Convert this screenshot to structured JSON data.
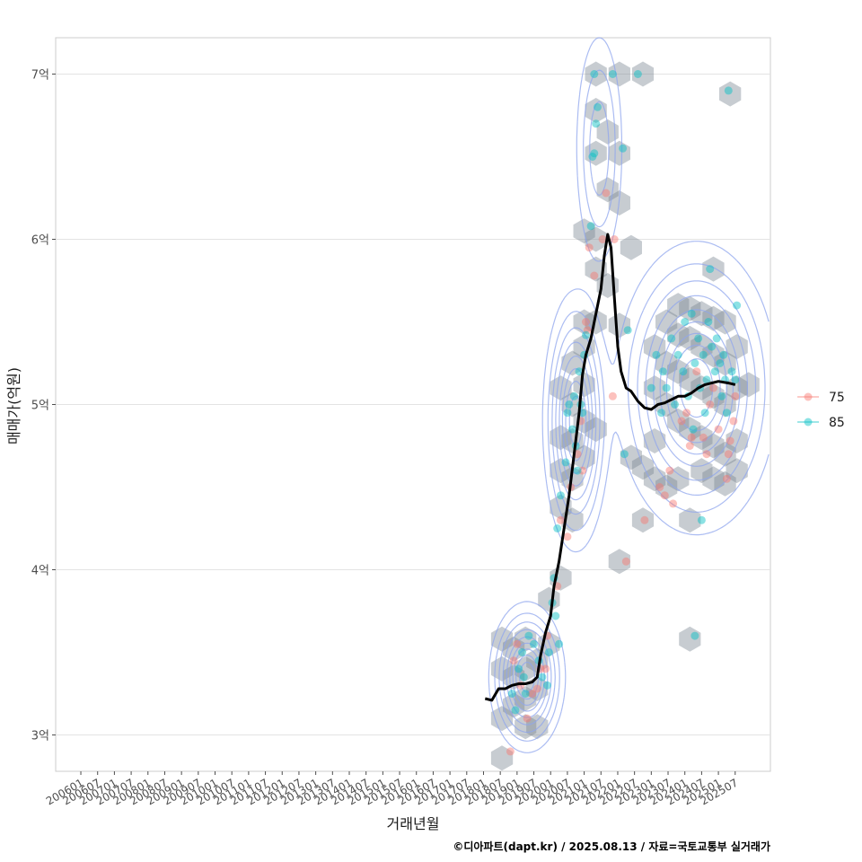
{
  "chart_data": {
    "type": "scatter",
    "title": "",
    "xlabel": "거래년월",
    "ylabel": "매매가(억원)",
    "caption": "©디아파트(dapt.kr) / 2025.08.13 / 자료=국토교통부 실거래가",
    "ylim": [
      2.78,
      7.22
    ],
    "xlim": [
      2005.25,
      2026.55
    ],
    "y_ticks": [
      {
        "value": 3,
        "label": "3억"
      },
      {
        "value": 4,
        "label": "4억"
      },
      {
        "value": 5,
        "label": "5억"
      },
      {
        "value": 6,
        "label": "6억"
      },
      {
        "value": 7,
        "label": "7억"
      }
    ],
    "x_ticks": [
      "200601",
      "200607",
      "200701",
      "200707",
      "200801",
      "200807",
      "200901",
      "200907",
      "201001",
      "201007",
      "201101",
      "201107",
      "201201",
      "201207",
      "201301",
      "201307",
      "201401",
      "201407",
      "201501",
      "201507",
      "201601",
      "201607",
      "201701",
      "201707",
      "201801",
      "201807",
      "201901",
      "201907",
      "202001",
      "202007",
      "202101",
      "202107",
      "202201",
      "202207",
      "202301",
      "202307",
      "202401",
      "202407",
      "202501",
      "202507"
    ],
    "legend": {
      "position": "right",
      "entries": [
        {
          "label": "75",
          "color": "#F8766D"
        },
        {
          "label": "85",
          "color": "#00BFC4"
        }
      ]
    },
    "colors": {
      "hex_fill": "#7a8591",
      "contour": "#8fa6ee",
      "trend": "#000000",
      "grid": "#e3e3e3",
      "panel_border": "#cccccc"
    },
    "series": [
      {
        "name": "75",
        "color": "#F8766D",
        "points": [
          [
            2018.9,
            3.45
          ],
          [
            2019.1,
            3.3
          ],
          [
            2019.3,
            3.1
          ],
          [
            2019.45,
            3.25
          ],
          [
            2019.6,
            3.28
          ],
          [
            2018.8,
            2.9
          ],
          [
            2019.0,
            3.55
          ],
          [
            2019.7,
            3.4
          ],
          [
            2019.9,
            3.6
          ],
          [
            2020.3,
            4.3
          ],
          [
            2020.6,
            4.5
          ],
          [
            2020.8,
            4.7
          ],
          [
            2020.9,
            4.9
          ],
          [
            2021.05,
            5.5
          ],
          [
            2021.1,
            5.45
          ],
          [
            2021.15,
            5.95
          ],
          [
            2021.3,
            5.78
          ],
          [
            2021.55,
            6.0
          ],
          [
            2021.65,
            6.28
          ],
          [
            2021.9,
            6.0
          ],
          [
            2021.85,
            5.05
          ],
          [
            2022.25,
            4.05
          ],
          [
            2022.8,
            4.3
          ],
          [
            2023.25,
            4.5
          ],
          [
            2023.4,
            4.45
          ],
          [
            2023.55,
            4.6
          ],
          [
            2023.65,
            4.4
          ],
          [
            2023.9,
            4.9
          ],
          [
            2024.05,
            4.95
          ],
          [
            2024.15,
            4.75
          ],
          [
            2024.2,
            4.8
          ],
          [
            2024.35,
            5.2
          ],
          [
            2024.55,
            4.8
          ],
          [
            2024.65,
            4.7
          ],
          [
            2024.75,
            5.0
          ],
          [
            2024.85,
            5.1
          ],
          [
            2025.0,
            4.85
          ],
          [
            2025.25,
            4.55
          ],
          [
            2025.3,
            4.7
          ],
          [
            2025.35,
            4.78
          ],
          [
            2025.45,
            4.9
          ],
          [
            2025.5,
            5.05
          ],
          [
            2020.5,
            4.2
          ],
          [
            2020.95,
            4.6
          ],
          [
            2019.85,
            3.4
          ],
          [
            2020.2,
            3.9
          ]
        ]
      },
      {
        "name": "85",
        "color": "#00BFC4",
        "points": [
          [
            2018.85,
            3.25
          ],
          [
            2018.95,
            3.15
          ],
          [
            2019.05,
            3.4
          ],
          [
            2019.15,
            3.5
          ],
          [
            2019.2,
            3.35
          ],
          [
            2019.35,
            3.6
          ],
          [
            2019.5,
            3.55
          ],
          [
            2019.65,
            3.45
          ],
          [
            2019.75,
            3.35
          ],
          [
            2019.95,
            3.5
          ],
          [
            2020.05,
            3.8
          ],
          [
            2020.15,
            3.72
          ],
          [
            2020.25,
            3.55
          ],
          [
            2019.9,
            3.3
          ],
          [
            2019.25,
            3.25
          ],
          [
            2020.1,
            3.95
          ],
          [
            2020.2,
            4.25
          ],
          [
            2020.3,
            4.45
          ],
          [
            2020.45,
            4.65
          ],
          [
            2020.5,
            4.95
          ],
          [
            2020.55,
            5.0
          ],
          [
            2020.65,
            4.85
          ],
          [
            2020.7,
            5.05
          ],
          [
            2020.75,
            4.75
          ],
          [
            2020.8,
            4.6
          ],
          [
            2020.85,
            5.2
          ],
          [
            2020.9,
            5.0
          ],
          [
            2020.95,
            4.95
          ],
          [
            2021.0,
            5.3
          ],
          [
            2021.05,
            5.42
          ],
          [
            2021.2,
            6.08
          ],
          [
            2021.25,
            6.5
          ],
          [
            2021.3,
            6.52
          ],
          [
            2021.35,
            6.7
          ],
          [
            2021.4,
            6.8
          ],
          [
            2021.3,
            7.0
          ],
          [
            2021.85,
            7.0
          ],
          [
            2022.15,
            6.55
          ],
          [
            2022.6,
            7.0
          ],
          [
            2025.3,
            6.9
          ],
          [
            2022.3,
            5.45
          ],
          [
            2022.2,
            4.7
          ],
          [
            2023.0,
            5.1
          ],
          [
            2023.15,
            5.3
          ],
          [
            2023.3,
            4.95
          ],
          [
            2023.35,
            5.2
          ],
          [
            2023.45,
            5.1
          ],
          [
            2023.6,
            5.4
          ],
          [
            2023.7,
            5.0
          ],
          [
            2023.8,
            5.3
          ],
          [
            2023.95,
            5.2
          ],
          [
            2024.0,
            5.5
          ],
          [
            2024.1,
            5.05
          ],
          [
            2024.25,
            4.85
          ],
          [
            2024.3,
            5.25
          ],
          [
            2024.4,
            5.4
          ],
          [
            2024.45,
            5.1
          ],
          [
            2024.55,
            5.3
          ],
          [
            2024.6,
            4.95
          ],
          [
            2024.65,
            5.15
          ],
          [
            2024.7,
            5.5
          ],
          [
            2024.8,
            5.35
          ],
          [
            2024.9,
            5.2
          ],
          [
            2024.95,
            5.4
          ],
          [
            2025.05,
            5.25
          ],
          [
            2025.1,
            5.05
          ],
          [
            2025.15,
            5.3
          ],
          [
            2025.2,
            5.15
          ],
          [
            2025.25,
            4.95
          ],
          [
            2025.4,
            5.2
          ],
          [
            2025.5,
            5.15
          ],
          [
            2024.2,
            5.55
          ],
          [
            2024.5,
            4.3
          ],
          [
            2024.3,
            3.6
          ],
          [
            2025.55,
            5.6
          ],
          [
            2024.75,
            5.82
          ]
        ]
      },
      {
        "name": "trend",
        "type": "line",
        "color": "#000000",
        "points": [
          [
            2018.05,
            3.22
          ],
          [
            2018.25,
            3.21
          ],
          [
            2018.45,
            3.28
          ],
          [
            2018.65,
            3.28
          ],
          [
            2018.85,
            3.3
          ],
          [
            2019.05,
            3.31
          ],
          [
            2019.25,
            3.31
          ],
          [
            2019.45,
            3.32
          ],
          [
            2019.6,
            3.35
          ],
          [
            2019.7,
            3.48
          ],
          [
            2019.85,
            3.62
          ],
          [
            2020.0,
            3.72
          ],
          [
            2020.1,
            3.9
          ],
          [
            2020.25,
            4.05
          ],
          [
            2020.4,
            4.25
          ],
          [
            2020.55,
            4.45
          ],
          [
            2020.7,
            4.7
          ],
          [
            2020.85,
            4.95
          ],
          [
            2020.95,
            5.18
          ],
          [
            2021.05,
            5.3
          ],
          [
            2021.2,
            5.4
          ],
          [
            2021.35,
            5.55
          ],
          [
            2021.5,
            5.7
          ],
          [
            2021.6,
            5.9
          ],
          [
            2021.7,
            6.03
          ],
          [
            2021.8,
            5.95
          ],
          [
            2021.9,
            5.65
          ],
          [
            2022.0,
            5.35
          ],
          [
            2022.1,
            5.2
          ],
          [
            2022.25,
            5.1
          ],
          [
            2022.4,
            5.08
          ],
          [
            2022.6,
            5.02
          ],
          [
            2022.8,
            4.98
          ],
          [
            2023.0,
            4.97
          ],
          [
            2023.2,
            5.0
          ],
          [
            2023.4,
            5.01
          ],
          [
            2023.6,
            5.03
          ],
          [
            2023.8,
            5.05
          ],
          [
            2024.0,
            5.05
          ],
          [
            2024.2,
            5.07
          ],
          [
            2024.4,
            5.1
          ],
          [
            2024.6,
            5.12
          ],
          [
            2024.8,
            5.13
          ],
          [
            2025.0,
            5.14
          ],
          [
            2025.3,
            5.13
          ],
          [
            2025.5,
            5.12
          ]
        ]
      }
    ],
    "hexbins": [
      [
        2018.55,
        3.58
      ],
      [
        2018.9,
        3.52
      ],
      [
        2019.25,
        3.58
      ],
      [
        2018.55,
        3.4
      ],
      [
        2018.9,
        3.35
      ],
      [
        2019.25,
        3.4
      ],
      [
        2019.6,
        3.45
      ],
      [
        2018.9,
        3.18
      ],
      [
        2019.25,
        3.22
      ],
      [
        2019.6,
        3.28
      ],
      [
        2018.55,
        3.1
      ],
      [
        2019.25,
        3.05
      ],
      [
        2019.6,
        3.05
      ],
      [
        2018.55,
        2.86
      ],
      [
        2019.95,
        3.55
      ],
      [
        2019.95,
        3.82
      ],
      [
        2020.3,
        3.95
      ],
      [
        2020.3,
        4.38
      ],
      [
        2020.65,
        4.3
      ],
      [
        2020.3,
        4.6
      ],
      [
        2020.65,
        4.55
      ],
      [
        2020.3,
        4.8
      ],
      [
        2020.65,
        4.78
      ],
      [
        2021.0,
        4.68
      ],
      [
        2020.65,
        5.0
      ],
      [
        2021.0,
        4.9
      ],
      [
        2021.35,
        4.85
      ],
      [
        2020.3,
        5.1
      ],
      [
        2021.0,
        5.12
      ],
      [
        2020.65,
        5.25
      ],
      [
        2021.0,
        5.35
      ],
      [
        2021.0,
        5.5
      ],
      [
        2021.35,
        5.5
      ],
      [
        2021.0,
        6.05
      ],
      [
        2021.35,
        6.0
      ],
      [
        2021.35,
        5.82
      ],
      [
        2021.7,
        5.72
      ],
      [
        2021.7,
        6.3
      ],
      [
        2021.35,
        6.52
      ],
      [
        2021.7,
        6.65
      ],
      [
        2021.35,
        6.78
      ],
      [
        2021.35,
        7.0
      ],
      [
        2022.05,
        7.0
      ],
      [
        2022.75,
        7.0
      ],
      [
        2025.35,
        6.88
      ],
      [
        2022.05,
        6.52
      ],
      [
        2022.05,
        6.22
      ],
      [
        2022.4,
        5.95
      ],
      [
        2022.05,
        5.48
      ],
      [
        2022.05,
        4.05
      ],
      [
        2022.75,
        4.3
      ],
      [
        2023.1,
        4.55
      ],
      [
        2022.4,
        4.68
      ],
      [
        2022.75,
        4.62
      ],
      [
        2023.1,
        4.78
      ],
      [
        2023.45,
        4.5
      ],
      [
        2023.8,
        4.55
      ],
      [
        2024.15,
        4.3
      ],
      [
        2024.15,
        3.58
      ],
      [
        2023.1,
        5.1
      ],
      [
        2023.45,
        5.0
      ],
      [
        2023.8,
        4.9
      ],
      [
        2024.15,
        4.85
      ],
      [
        2024.5,
        4.8
      ],
      [
        2024.85,
        4.75
      ],
      [
        2025.2,
        4.7
      ],
      [
        2025.55,
        4.78
      ],
      [
        2023.1,
        5.35
      ],
      [
        2023.45,
        5.25
      ],
      [
        2023.8,
        5.2
      ],
      [
        2024.15,
        5.15
      ],
      [
        2024.5,
        5.1
      ],
      [
        2024.85,
        5.05
      ],
      [
        2025.2,
        5.0
      ],
      [
        2025.55,
        5.1
      ],
      [
        2025.9,
        5.12
      ],
      [
        2023.45,
        5.5
      ],
      [
        2023.8,
        5.42
      ],
      [
        2024.15,
        5.4
      ],
      [
        2024.5,
        5.35
      ],
      [
        2024.85,
        5.3
      ],
      [
        2025.2,
        5.25
      ],
      [
        2025.55,
        5.35
      ],
      [
        2023.8,
        5.6
      ],
      [
        2024.15,
        5.58
      ],
      [
        2024.5,
        5.55
      ],
      [
        2024.85,
        5.52
      ],
      [
        2025.2,
        5.5
      ],
      [
        2024.85,
        5.82
      ],
      [
        2024.5,
        4.6
      ],
      [
        2024.85,
        4.55
      ],
      [
        2025.2,
        4.52
      ],
      [
        2025.55,
        4.6
      ]
    ],
    "density_centers": [
      {
        "x": 2019.3,
        "y": 3.35,
        "sx": 0.45,
        "sy": 0.18,
        "w": 1.0
      },
      {
        "x": 2020.75,
        "y": 4.9,
        "sx": 0.4,
        "sy": 0.32,
        "w": 0.85
      },
      {
        "x": 2024.35,
        "y": 5.1,
        "sx": 0.95,
        "sy": 0.35,
        "w": 1.0
      },
      {
        "x": 2021.45,
        "y": 6.55,
        "sx": 0.35,
        "sy": 0.35,
        "w": 0.25
      }
    ]
  }
}
